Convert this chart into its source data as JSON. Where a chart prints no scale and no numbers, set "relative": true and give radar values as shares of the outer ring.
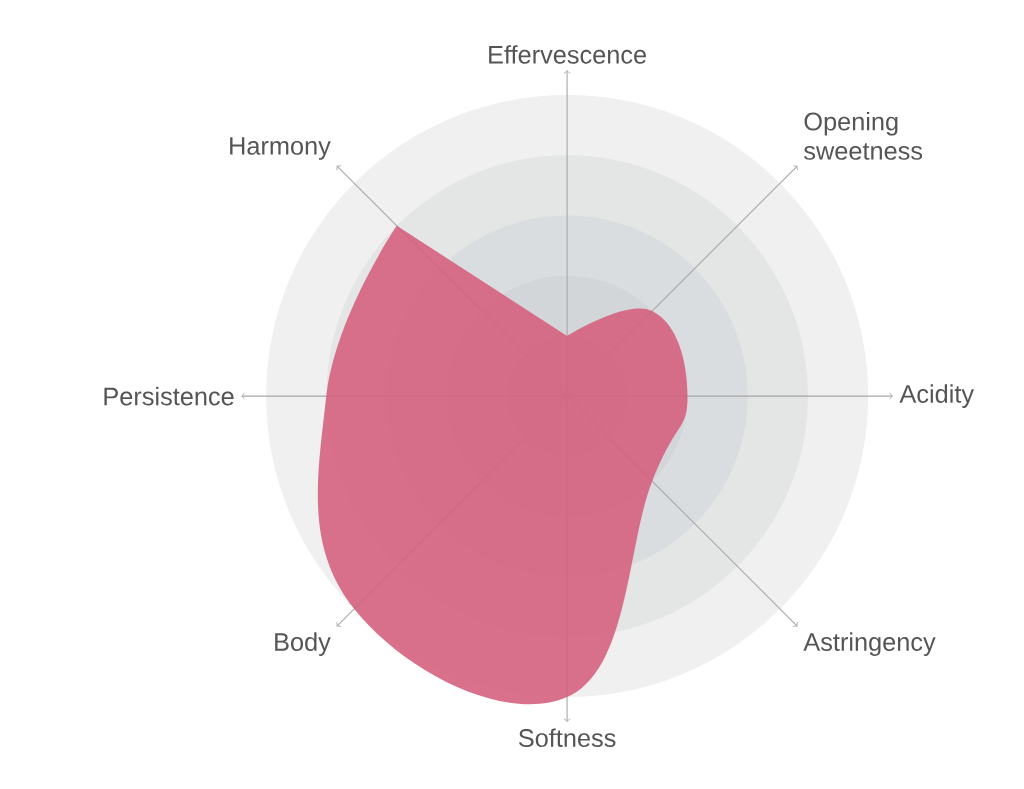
{
  "chart_data": {
    "type": "radar",
    "relative": true,
    "grid": true,
    "categories": [
      "Effervescence",
      "Opening sweetness",
      "Acidity",
      "Astringency",
      "Softness",
      "Body",
      "Persistence",
      "Harmony"
    ],
    "series": [
      {
        "color": "#d5607f",
        "values": [
          0.2,
          0.4,
          0.4,
          0.4,
          1,
          1,
          0.8,
          0.8
        ]
      }
    ]
  }
}
